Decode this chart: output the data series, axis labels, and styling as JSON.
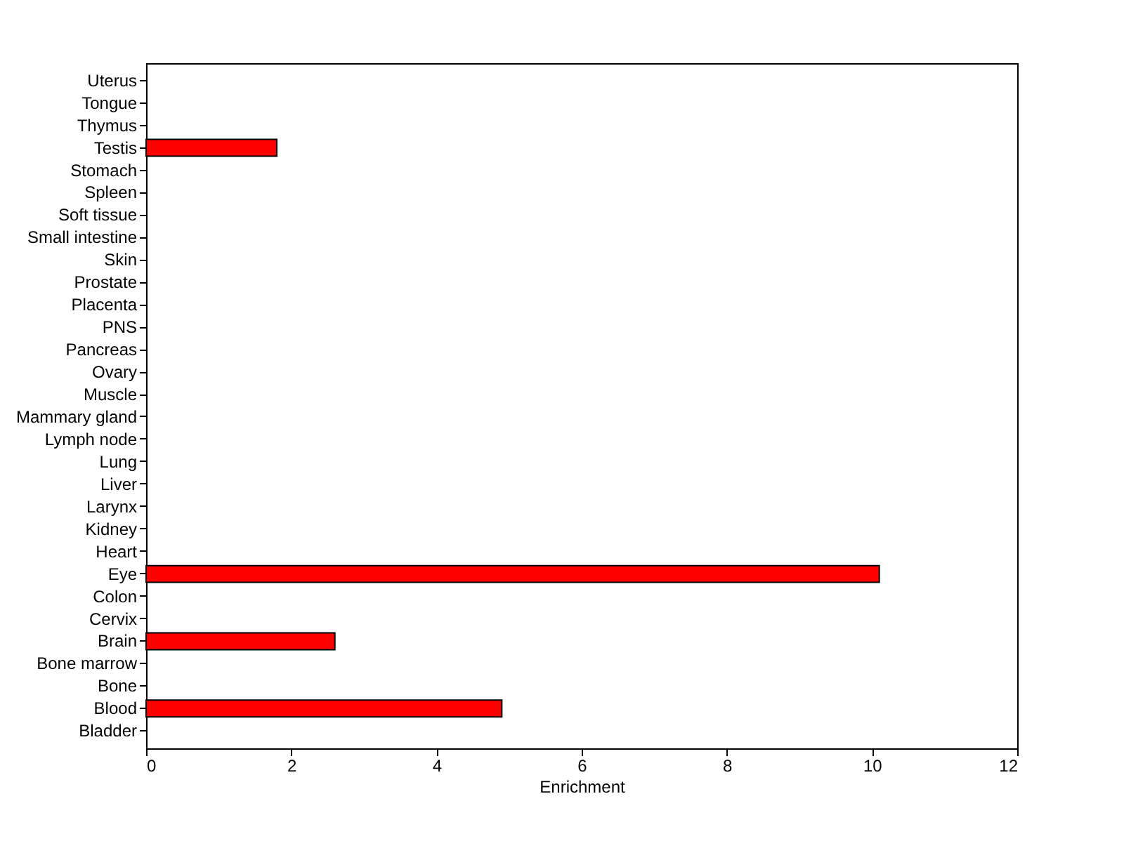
{
  "chart_data": {
    "type": "bar",
    "orientation": "horizontal",
    "xlabel": "Enrichment",
    "categories": [
      "Uterus",
      "Tongue",
      "Thymus",
      "Testis",
      "Stomach",
      "Spleen",
      "Soft tissue",
      "Small intestine",
      "Skin",
      "Prostate",
      "Placenta",
      "PNS",
      "Pancreas",
      "Ovary",
      "Muscle",
      "Mammary gland",
      "Lymph node",
      "Lung",
      "Liver",
      "Larynx",
      "Kidney",
      "Heart",
      "Eye",
      "Colon",
      "Cervix",
      "Brain",
      "Bone marrow",
      "Bone",
      "Blood",
      "Bladder"
    ],
    "values": [
      null,
      null,
      null,
      1.8,
      null,
      null,
      null,
      null,
      null,
      null,
      null,
      null,
      null,
      null,
      null,
      null,
      null,
      null,
      null,
      null,
      null,
      null,
      10.1,
      null,
      null,
      2.6,
      null,
      null,
      4.9,
      null
    ],
    "color": "#ff0000",
    "xlim": [
      0,
      12
    ],
    "xticks": [
      0,
      2,
      4,
      6,
      8,
      10,
      12
    ]
  }
}
